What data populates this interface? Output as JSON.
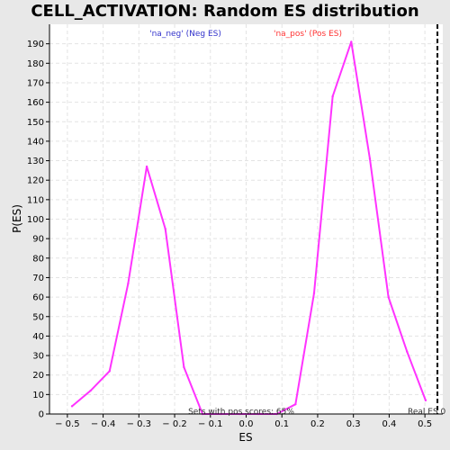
{
  "chart_data": {
    "type": "line",
    "title": "CELL_ACTIVATION: Random ES distribution",
    "xlabel": "ES",
    "ylabel": "P(ES)",
    "xlim": [
      -0.55,
      0.55
    ],
    "ylim": [
      0,
      200
    ],
    "xticks": [
      -0.5,
      -0.4,
      -0.3,
      -0.2,
      -0.1,
      0.0,
      0.1,
      0.2,
      0.3,
      0.4,
      0.5
    ],
    "xtick_labels": [
      "− 0.5",
      "− 0.4",
      "− 0.3",
      "− 0.2",
      "− 0.1",
      "0.0",
      "0.1",
      "0.2",
      "0.3",
      "0.4",
      "0.5"
    ],
    "yticks": [
      0,
      10,
      20,
      30,
      40,
      50,
      60,
      70,
      80,
      90,
      100,
      110,
      120,
      130,
      140,
      150,
      160,
      170,
      180,
      190
    ],
    "grid": true,
    "series": [
      {
        "color": "#ff33ff",
        "x": [
          -0.487,
          -0.435,
          -0.382,
          -0.33,
          -0.278,
          -0.226,
          -0.174,
          -0.122,
          -0.07,
          -0.018,
          0.034,
          0.086,
          0.138,
          0.19,
          0.242,
          0.294,
          0.346,
          0.398,
          0.45,
          0.502
        ],
        "y": [
          4,
          12,
          22,
          67,
          127,
          95,
          24,
          0,
          0,
          0,
          0,
          0,
          5,
          62,
          163,
          191,
          131,
          60,
          32,
          7
        ]
      }
    ],
    "real_es_x": 0.535,
    "annotations": {
      "neg": "'na_neg' (Neg ES)",
      "pos": "'na_pos' (Pos ES)",
      "pos_scores": "Sets with pos scores: 65%",
      "real_es": "Real ES 0"
    },
    "colors": {
      "neg": "#3333cc",
      "pos": "#ff3333",
      "line": "#ff33ff",
      "real_es": "#000000"
    }
  }
}
